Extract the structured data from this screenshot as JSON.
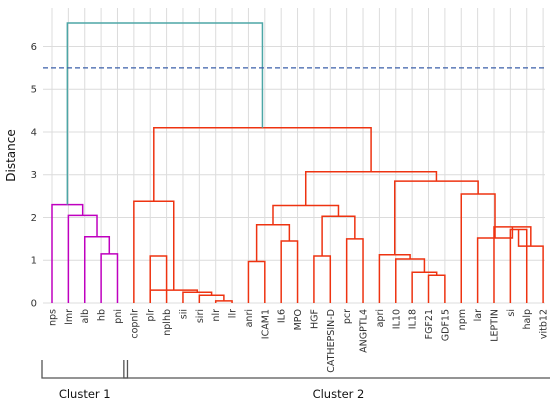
{
  "chart_data": {
    "type": "dendrogram",
    "ylabel": "Distance",
    "ylim": [
      0,
      6.9
    ],
    "yticks": [
      0,
      1,
      2,
      3,
      4,
      5,
      6
    ],
    "grid": true,
    "cut_threshold": 5.5,
    "leaves": [
      "nps",
      "lmr",
      "alb",
      "hb",
      "pni",
      "copnlr",
      "plr",
      "nplhb",
      "sii",
      "siri",
      "nlr",
      "llr",
      "anri",
      "ICAM1",
      "IL6",
      "MPO",
      "HGF",
      "CATHEPSIN-D",
      "pcr",
      "ANGPTL4",
      "apri",
      "IL10",
      "IL18",
      "FGF21",
      "GDF15",
      "npm",
      "lar",
      "LEPTIN",
      "si",
      "halp",
      "vitb12"
    ],
    "merges": [
      {
        "left": "pni",
        "right": "hb",
        "height": 1.15,
        "group": "c1"
      },
      {
        "left": "alb",
        "right": "hb+pni",
        "height": 1.55,
        "group": "c1"
      },
      {
        "left": "lmr",
        "right": "alb..pni",
        "height": 2.05,
        "group": "c1"
      },
      {
        "left": "nps",
        "right": "lmr..pni",
        "height": 2.3,
        "group": "c1"
      },
      {
        "left": "nlr",
        "right": "llr",
        "height": 0.05,
        "group": "c2"
      },
      {
        "left": "siri",
        "right": "nlr+llr",
        "height": 0.18,
        "group": "c2"
      },
      {
        "left": "sii",
        "right": "siri..llr",
        "height": 0.25,
        "group": "c2"
      },
      {
        "left": "plr",
        "right": "sii..llr",
        "height": 0.3,
        "group": "c2"
      },
      {
        "left": "plr",
        "right": "nplhb",
        "height": 1.1,
        "group": "c2"
      },
      {
        "left": "copnlr",
        "right": "plr..llr",
        "height": 2.38,
        "group": "c2"
      },
      {
        "left": "anri",
        "right": "ICAM1",
        "height": 0.97,
        "group": "c2"
      },
      {
        "left": "IL6",
        "right": "MPO",
        "height": 1.45,
        "group": "c2"
      },
      {
        "left": "anri+ICAM1",
        "right": "IL6+MPO",
        "height": 1.83,
        "group": "c2"
      },
      {
        "left": "HGF",
        "right": "CATHEPSIN-D",
        "height": 1.1,
        "group": "c2"
      },
      {
        "left": "pcr",
        "right": "ANGPTL4",
        "height": 1.5,
        "group": "c2"
      },
      {
        "left": "HGF..CATHEPSIN-D",
        "right": "pcr..ANGPTL4",
        "height": 2.03,
        "group": "c2"
      },
      {
        "left": "anri..MPO",
        "right": "HGF..ANGPTL4",
        "height": 2.28,
        "group": "c2"
      },
      {
        "left": "FGF21",
        "right": "GDF15",
        "height": 0.65,
        "group": "c2"
      },
      {
        "left": "IL18",
        "right": "FGF21+GDF15",
        "height": 0.72,
        "group": "c2"
      },
      {
        "left": "IL10",
        "right": "IL18..GDF15",
        "height": 1.03,
        "group": "c2"
      },
      {
        "left": "apri",
        "right": "IL10..GDF15",
        "height": 1.13,
        "group": "c2"
      },
      {
        "left": "si",
        "right": "halp",
        "height": 1.72,
        "group": "c2"
      },
      {
        "left": "si+halp",
        "right": "vitb12",
        "height": 1.33,
        "group": "c2"
      },
      {
        "left": "LEPTIN",
        "right": "si..vitb12",
        "height": 1.78,
        "group": "c2"
      },
      {
        "left": "lar",
        "right": "LEPTIN..vitb12",
        "height": 1.52,
        "group": "c2"
      },
      {
        "left": "npm",
        "right": "lar..vitb12",
        "height": 2.55,
        "group": "c2"
      },
      {
        "left": "apri..GDF15",
        "right": "npm..vitb12",
        "height": 2.85,
        "group": "c2"
      },
      {
        "left": "anri..ANGPTL4",
        "right": "apri..vitb12",
        "height": 3.07,
        "group": "c2"
      },
      {
        "left": "copnlr..llr",
        "right": "anri..vitb12",
        "height": 4.1,
        "group": "c2"
      },
      {
        "left": "Cluster 1",
        "right": "Cluster 2",
        "height": 6.55,
        "group": "root"
      }
    ],
    "clusters": [
      {
        "label": "Cluster 1",
        "from": "nps",
        "to": "pni"
      },
      {
        "label": "Cluster 2",
        "from": "copnlr",
        "to": "vitb12"
      }
    ],
    "colors": {
      "cluster1": "#bf00bf",
      "cluster2": "#ee3311",
      "root": "#4da6a6",
      "threshold": "#3a5fa8",
      "grid": "#dcdcdc",
      "background": "#ffffff"
    }
  }
}
